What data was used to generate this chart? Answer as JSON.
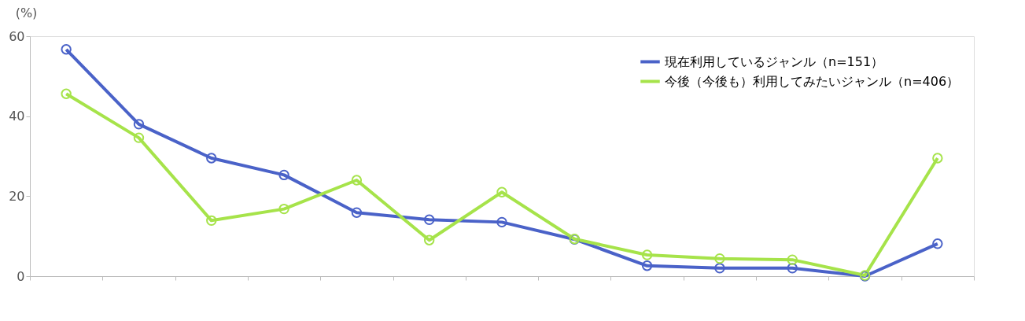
{
  "chart_data": {
    "type": "line",
    "ylabel": "(%)",
    "categories": [
      null,
      null,
      null,
      null,
      null,
      null,
      null,
      null,
      null,
      null,
      null,
      null,
      null
    ],
    "series": [
      {
        "name": "現在利用しているジャンル（n=151）",
        "color": "#4a62c8",
        "values": [
          56.7,
          38.0,
          29.5,
          25.3,
          15.9,
          14.1,
          13.5,
          9.2,
          2.6,
          2.0,
          2.0,
          0,
          8.1
        ]
      },
      {
        "name": "今後（今後も）利用してみたいジャンル（n=406）",
        "color": "#a6e34a",
        "values": [
          45.6,
          34.6,
          13.9,
          16.8,
          24.0,
          9.0,
          21.0,
          9.3,
          5.3,
          4.4,
          4.1,
          0.2,
          29.5
        ]
      }
    ],
    "ylim": [
      0,
      60
    ],
    "yticks": [
      0,
      20,
      40,
      60
    ],
    "grid": false,
    "legend": "top right",
    "marker": "circle",
    "line_style": "solid",
    "tick_labels": "y"
  }
}
